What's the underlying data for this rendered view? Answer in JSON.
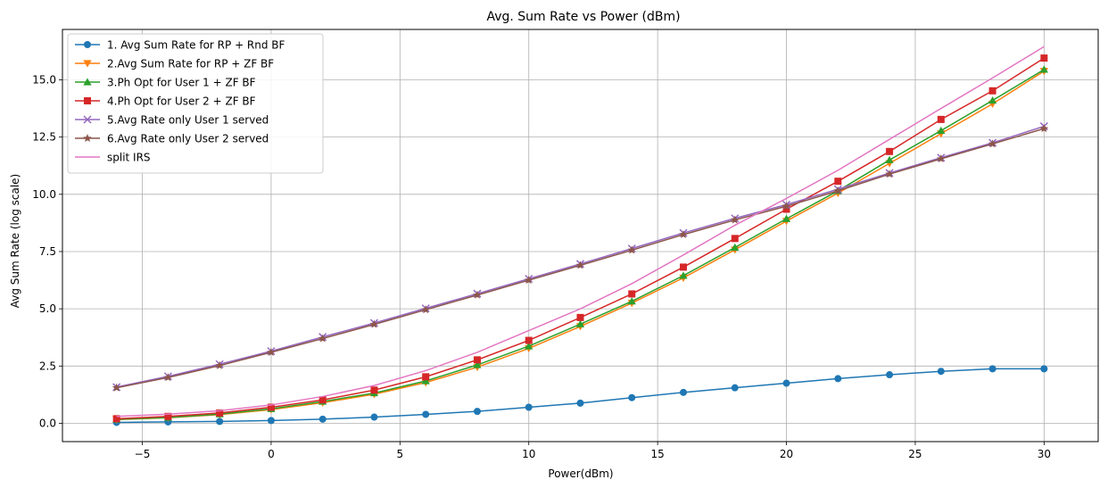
{
  "chart_data": {
    "type": "line",
    "title": "Avg. Sum Rate vs Power (dBm)",
    "xlabel": "Power(dBm)",
    "ylabel": "Avg Sum Rate (log scale)",
    "xlim": [
      -8.1,
      32.1
    ],
    "ylim": [
      -0.8,
      17.2
    ],
    "xticks": [
      -5,
      0,
      5,
      10,
      15,
      20,
      25,
      30
    ],
    "xtick_labels": [
      "−5",
      "0",
      "5",
      "10",
      "15",
      "20",
      "25",
      "30"
    ],
    "yticks": [
      0.0,
      2.5,
      5.0,
      7.5,
      10.0,
      12.5,
      15.0
    ],
    "ytick_labels": [
      "0.0",
      "2.5",
      "5.0",
      "7.5",
      "10.0",
      "12.5",
      "15.0"
    ],
    "grid": true,
    "legend_position": "top-left",
    "x": [
      -6,
      -4,
      -2,
      0,
      2,
      4,
      6,
      8,
      10,
      12,
      14,
      16,
      18,
      20,
      22,
      24,
      26,
      28,
      30
    ],
    "series": [
      {
        "name": "1. Avg Sum Rate for RP + Rnd BF",
        "color": "#1f77b4",
        "marker": "circle",
        "values": [
          0.04,
          0.06,
          0.08,
          0.12,
          0.18,
          0.27,
          0.39,
          0.52,
          0.7,
          0.88,
          1.12,
          1.35,
          1.55,
          1.75,
          1.95,
          2.12,
          2.27,
          2.38,
          2.38
        ]
      },
      {
        "name": "2.Avg Sum Rate for RP + ZF BF",
        "color": "#ff7f0e",
        "marker": "triangle-down",
        "values": [
          0.16,
          0.24,
          0.38,
          0.6,
          0.9,
          1.27,
          1.78,
          2.45,
          3.27,
          4.23,
          5.25,
          6.35,
          7.58,
          8.83,
          10.05,
          11.35,
          12.65,
          13.95,
          15.38
        ]
      },
      {
        "name": "3.Ph Opt for User 1 + ZF BF",
        "color": "#2ca02c",
        "marker": "triangle-up",
        "values": [
          0.17,
          0.25,
          0.4,
          0.63,
          0.95,
          1.32,
          1.85,
          2.55,
          3.37,
          4.33,
          5.33,
          6.45,
          7.68,
          8.93,
          10.15,
          11.5,
          12.78,
          14.1,
          15.45
        ]
      },
      {
        "name": "4.Ph Opt for User 2 + ZF BF",
        "color": "#d62728",
        "marker": "square",
        "values": [
          0.2,
          0.3,
          0.45,
          0.7,
          1.02,
          1.45,
          2.03,
          2.77,
          3.62,
          4.62,
          5.65,
          6.82,
          8.07,
          9.35,
          10.57,
          11.87,
          13.27,
          14.52,
          15.95
        ]
      },
      {
        "name": "5.Avg Rate only User 1 served",
        "color": "#9467bd",
        "marker": "x",
        "values": [
          1.58,
          2.05,
          2.58,
          3.15,
          3.77,
          4.38,
          5.02,
          5.66,
          6.31,
          6.96,
          7.63,
          8.31,
          8.95,
          9.55,
          10.22,
          10.93,
          11.6,
          12.25,
          12.97
        ]
      },
      {
        "name": "6.Avg Rate only User 2 served",
        "color": "#8c564b",
        "marker": "star",
        "values": [
          1.55,
          2.0,
          2.52,
          3.1,
          3.7,
          4.32,
          4.96,
          5.6,
          6.25,
          6.9,
          7.56,
          8.24,
          8.88,
          9.48,
          10.15,
          10.88,
          11.55,
          12.2,
          12.87
        ]
      },
      {
        "name": "split IRS",
        "color": "#e377c2",
        "marker": "none",
        "values": [
          0.3,
          0.4,
          0.55,
          0.8,
          1.17,
          1.65,
          2.3,
          3.1,
          4.05,
          5.0,
          6.1,
          7.35,
          8.65,
          9.82,
          11.05,
          12.4,
          13.75,
          15.08,
          16.45
        ]
      }
    ]
  }
}
